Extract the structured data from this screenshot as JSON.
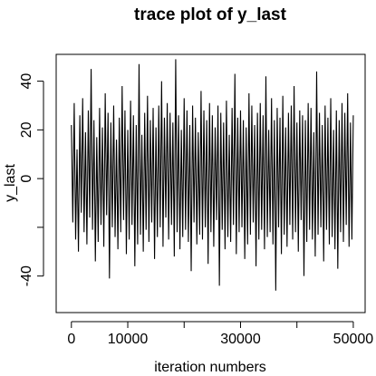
{
  "chart_data": {
    "type": "line",
    "title": "trace plot of y_last",
    "x_label": "iteration numbers",
    "y_label": "y_last",
    "xlim": [
      -2700,
      52100
    ],
    "ylim": [
      -55,
      51
    ],
    "xticks": [
      0,
      10000,
      {
        "value": 20000,
        "label": null
      },
      30000,
      {
        "value": 40000,
        "label": null
      },
      50000
    ],
    "yticks": [
      -40,
      {
        "value": -20,
        "label": null
      },
      0,
      20,
      40
    ],
    "grid": false,
    "x": [
      0,
      250,
      500,
      750,
      1000,
      1250,
      1500,
      1750,
      2000,
      2250,
      2500,
      2750,
      3000,
      3250,
      3500,
      3750,
      4000,
      4250,
      4500,
      4750,
      5000,
      5250,
      5500,
      5750,
      6000,
      6250,
      6500,
      6750,
      7000,
      7250,
      7500,
      7750,
      8000,
      8250,
      8500,
      8750,
      9000,
      9250,
      9500,
      9750,
      10000,
      10250,
      10500,
      10750,
      11000,
      11250,
      11500,
      11750,
      12000,
      12250,
      12500,
      12750,
      13000,
      13250,
      13500,
      13750,
      14000,
      14250,
      14500,
      14750,
      15000,
      15250,
      15500,
      15750,
      16000,
      16250,
      16500,
      16750,
      17000,
      17250,
      17500,
      17750,
      18000,
      18250,
      18500,
      18750,
      19000,
      19250,
      19500,
      19750,
      20000,
      20250,
      20500,
      20750,
      21000,
      21250,
      21500,
      21750,
      22000,
      22250,
      22500,
      22750,
      23000,
      23250,
      23500,
      23750,
      24000,
      24250,
      24500,
      24750,
      25000,
      25250,
      25500,
      25750,
      26000,
      26250,
      26500,
      26750,
      27000,
      27250,
      27500,
      27750,
      28000,
      28250,
      28500,
      28750,
      29000,
      29250,
      29500,
      29750,
      30000,
      30250,
      30500,
      30750,
      31000,
      31250,
      31500,
      31750,
      32000,
      32250,
      32500,
      32750,
      33000,
      33250,
      33500,
      33750,
      34000,
      34250,
      34500,
      34750,
      35000,
      35250,
      35500,
      35750,
      36000,
      36250,
      36500,
      36750,
      37000,
      37250,
      37500,
      37750,
      38000,
      38250,
      38500,
      38750,
      39000,
      39250,
      39500,
      39750,
      40000,
      40250,
      40500,
      40750,
      41000,
      41250,
      41500,
      41750,
      42000,
      42250,
      42500,
      42750,
      43000,
      43250,
      43500,
      43750,
      44000,
      44250,
      44500,
      44750,
      45000,
      45250,
      45500,
      45750,
      46000,
      46250,
      46500,
      46750,
      47000,
      47250,
      47500,
      47750,
      48000,
      48250,
      48500,
      48750,
      49000,
      49250,
      49500,
      49750,
      50000
    ],
    "series": [
      {
        "name": "y_last",
        "color": "#000000",
        "values": [
          22,
          -18,
          31,
          -25,
          12,
          -30,
          26,
          -14,
          33,
          -22,
          19,
          -27,
          28,
          -16,
          45,
          -21,
          24,
          -34,
          17,
          -26,
          29,
          -19,
          21,
          -28,
          35,
          -15,
          27,
          -41,
          23,
          -20,
          30,
          -24,
          16,
          -29,
          25,
          -22,
          38,
          -17,
          28,
          -31,
          20,
          -25,
          32,
          -19,
          26,
          -36,
          22,
          -27,
          47,
          -23,
          18,
          -30,
          27,
          -21,
          34,
          -26,
          24,
          -18,
          29,
          -33,
          21,
          -24,
          30,
          -20,
          40,
          -28,
          25,
          -16,
          31,
          -25,
          27,
          -19,
          23,
          -32,
          49,
          -22,
          26,
          -29,
          20,
          -24,
          33,
          -21,
          28,
          -26,
          22,
          -38,
          30,
          -18,
          25,
          -27,
          19,
          -23,
          36,
          -25,
          28,
          -20,
          24,
          -35,
          31,
          -22,
          26,
          -28,
          21,
          -17,
          30,
          -44,
          27,
          -21,
          23,
          -29,
          32,
          -24,
          18,
          -26,
          29,
          -19,
          43,
          -31,
          25,
          -22,
          28,
          -20,
          24,
          -33,
          21,
          -27,
          35,
          -23,
          30,
          -18,
          22,
          -36,
          27,
          -25,
          31,
          -21,
          26,
          -29,
          42,
          -24,
          20,
          -22,
          33,
          -27,
          24,
          -46,
          29,
          -20,
          25,
          -31,
          34,
          -23,
          21,
          -28,
          27,
          -19,
          30,
          -25,
          38,
          -22,
          23,
          -30,
          28,
          -17,
          26,
          -40,
          24,
          -26,
          31,
          -21,
          29,
          -25,
          19,
          -32,
          44,
          -23,
          27,
          -20,
          22,
          -34,
          30,
          -21,
          25,
          -27,
          33,
          -24,
          20,
          -29,
          28,
          -37,
          24,
          -22,
          31,
          -26,
          27,
          -19,
          35,
          -28,
          23,
          -25,
          26
        ]
      }
    ]
  }
}
